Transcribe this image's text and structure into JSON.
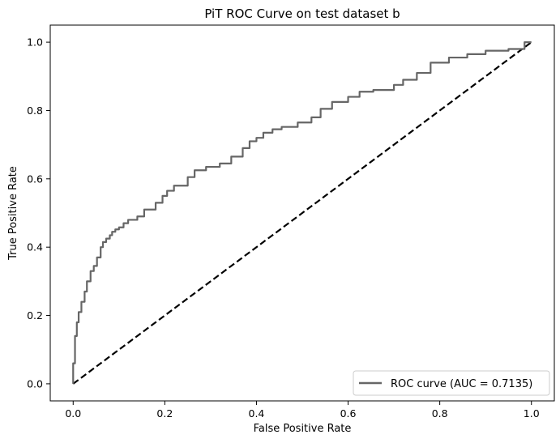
{
  "chart_data": {
    "type": "line",
    "title": "PiT ROC Curve on test dataset b",
    "xlabel": "False Positive Rate",
    "ylabel": "True Positive Rate",
    "xlim": [
      -0.05,
      1.05
    ],
    "ylim": [
      -0.05,
      1.05
    ],
    "xticks": [
      0.0,
      0.2,
      0.4,
      0.6,
      0.8,
      1.0
    ],
    "xtick_labels": [
      "0.0",
      "0.2",
      "0.4",
      "0.6",
      "0.8",
      "1.0"
    ],
    "yticks": [
      0.0,
      0.2,
      0.4,
      0.6,
      0.8,
      1.0
    ],
    "ytick_labels": [
      "0.0",
      "0.2",
      "0.4",
      "0.6",
      "0.8",
      "1.0"
    ],
    "grid": false,
    "legend_position": "lower right",
    "series": [
      {
        "name": "ROC curve (AUC = 0.7135)",
        "color": "#666666",
        "style": "solid",
        "x": [
          0.0,
          0.0,
          0.004,
          0.004,
          0.008,
          0.008,
          0.012,
          0.012,
          0.018,
          0.018,
          0.025,
          0.025,
          0.03,
          0.03,
          0.038,
          0.038,
          0.045,
          0.045,
          0.052,
          0.052,
          0.06,
          0.06,
          0.065,
          0.065,
          0.072,
          0.072,
          0.08,
          0.08,
          0.085,
          0.085,
          0.092,
          0.092,
          0.1,
          0.1,
          0.11,
          0.11,
          0.12,
          0.12,
          0.14,
          0.14,
          0.155,
          0.155,
          0.18,
          0.18,
          0.195,
          0.195,
          0.205,
          0.205,
          0.22,
          0.22,
          0.25,
          0.25,
          0.265,
          0.265,
          0.29,
          0.29,
          0.32,
          0.32,
          0.345,
          0.345,
          0.37,
          0.37,
          0.385,
          0.385,
          0.4,
          0.4,
          0.415,
          0.415,
          0.435,
          0.435,
          0.455,
          0.455,
          0.49,
          0.49,
          0.52,
          0.52,
          0.54,
          0.54,
          0.565,
          0.565,
          0.6,
          0.6,
          0.625,
          0.625,
          0.655,
          0.655,
          0.7,
          0.7,
          0.72,
          0.72,
          0.75,
          0.75,
          0.78,
          0.78,
          0.82,
          0.82,
          0.86,
          0.86,
          0.9,
          0.9,
          0.95,
          0.95,
          0.985,
          0.985,
          1.0
        ],
        "y": [
          0.0,
          0.06,
          0.06,
          0.14,
          0.14,
          0.18,
          0.18,
          0.21,
          0.21,
          0.24,
          0.24,
          0.27,
          0.27,
          0.3,
          0.3,
          0.33,
          0.33,
          0.345,
          0.345,
          0.37,
          0.37,
          0.4,
          0.4,
          0.415,
          0.415,
          0.425,
          0.425,
          0.435,
          0.435,
          0.445,
          0.445,
          0.452,
          0.452,
          0.458,
          0.458,
          0.47,
          0.47,
          0.48,
          0.48,
          0.49,
          0.49,
          0.51,
          0.51,
          0.53,
          0.53,
          0.55,
          0.55,
          0.565,
          0.565,
          0.58,
          0.58,
          0.605,
          0.605,
          0.625,
          0.625,
          0.635,
          0.635,
          0.645,
          0.645,
          0.665,
          0.665,
          0.69,
          0.69,
          0.71,
          0.71,
          0.72,
          0.72,
          0.735,
          0.735,
          0.745,
          0.745,
          0.752,
          0.752,
          0.765,
          0.765,
          0.78,
          0.78,
          0.805,
          0.805,
          0.825,
          0.825,
          0.84,
          0.84,
          0.855,
          0.855,
          0.86,
          0.86,
          0.875,
          0.875,
          0.89,
          0.89,
          0.91,
          0.91,
          0.94,
          0.94,
          0.955,
          0.955,
          0.965,
          0.965,
          0.975,
          0.975,
          0.98,
          0.98,
          1.0,
          1.0
        ]
      },
      {
        "name": "",
        "color": "#000000",
        "style": "dashed",
        "x": [
          0.0,
          1.0
        ],
        "y": [
          0.0,
          1.0
        ]
      }
    ]
  }
}
